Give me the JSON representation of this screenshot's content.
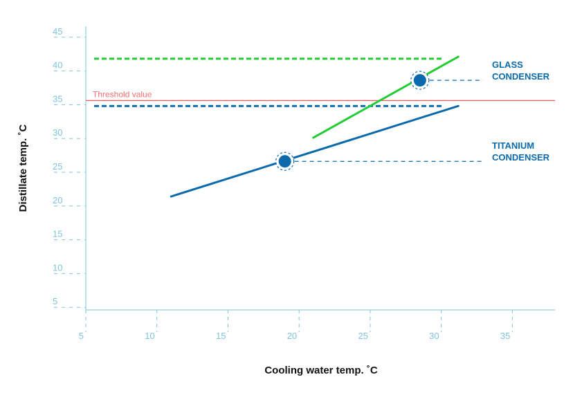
{
  "chart_data": {
    "type": "line",
    "xlabel": "Cooling water temp. ˚C",
    "ylabel": "Distillate temp. ˚C",
    "xlim": [
      5,
      38
    ],
    "ylim": [
      4,
      46
    ],
    "x_ticks": [
      "5",
      "10",
      "15",
      "20",
      "25",
      "30",
      "35"
    ],
    "y_ticks": [
      "5",
      "10",
      "15",
      "20",
      "25",
      "30",
      "35",
      "40",
      "45"
    ],
    "threshold": {
      "label": "Threshold value",
      "value": 35,
      "color": "#f05a5a"
    },
    "series": [
      {
        "name": "TITANIUM CONDENSER",
        "label_lines": [
          "TITANIUM",
          "CONDENSER"
        ],
        "color": "#0a6aab",
        "line": [
          [
            11,
            20.8
          ],
          [
            31.2,
            34.2
          ]
        ],
        "marker": [
          19,
          26
        ],
        "limit_line": {
          "value": 34.2,
          "x_end": 30.2
        }
      },
      {
        "name": "GLASS CONDENSER",
        "label_lines": [
          "GLASS",
          "CONDENSER"
        ],
        "color": "#22cc33",
        "marker_color": "#0a6aab",
        "line": [
          [
            21,
            29.5
          ],
          [
            31.2,
            41.5
          ]
        ],
        "marker": [
          28.5,
          38
        ],
        "limit_line": {
          "value": 41.2,
          "x_end": 30.2
        }
      }
    ],
    "grid": false
  }
}
